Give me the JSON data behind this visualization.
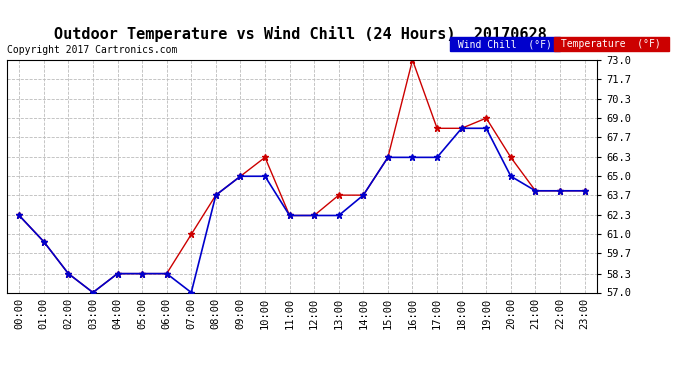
{
  "title": "Outdoor Temperature vs Wind Chill (24 Hours)  20170628",
  "copyright": "Copyright 2017 Cartronics.com",
  "background_color": "#ffffff",
  "plot_bg_color": "#ffffff",
  "grid_color": "#bbbbbb",
  "hours": [
    0,
    1,
    2,
    3,
    4,
    5,
    6,
    7,
    8,
    9,
    10,
    11,
    12,
    13,
    14,
    15,
    16,
    17,
    18,
    19,
    20,
    21,
    22,
    23
  ],
  "temp": [
    62.3,
    60.5,
    58.3,
    57.0,
    58.3,
    58.3,
    58.3,
    61.0,
    63.7,
    65.0,
    66.3,
    62.3,
    62.3,
    63.7,
    63.7,
    66.3,
    73.0,
    68.3,
    68.3,
    69.0,
    66.3,
    64.0,
    64.0,
    64.0
  ],
  "wind_chill": [
    62.3,
    60.5,
    58.3,
    57.0,
    58.3,
    58.3,
    58.3,
    57.0,
    63.7,
    65.0,
    65.0,
    62.3,
    62.3,
    62.3,
    63.7,
    66.3,
    66.3,
    66.3,
    68.3,
    68.3,
    65.0,
    64.0,
    64.0,
    64.0
  ],
  "ylim": [
    57.0,
    73.0
  ],
  "yticks": [
    57.0,
    58.3,
    59.7,
    61.0,
    62.3,
    63.7,
    65.0,
    66.3,
    67.7,
    69.0,
    70.3,
    71.7,
    73.0
  ],
  "temp_color": "#cc0000",
  "wind_chill_color": "#0000cc",
  "legend_wind_bg": "#0000cc",
  "legend_temp_bg": "#cc0000",
  "title_fontsize": 11,
  "copyright_fontsize": 7,
  "tick_fontsize": 7.5
}
